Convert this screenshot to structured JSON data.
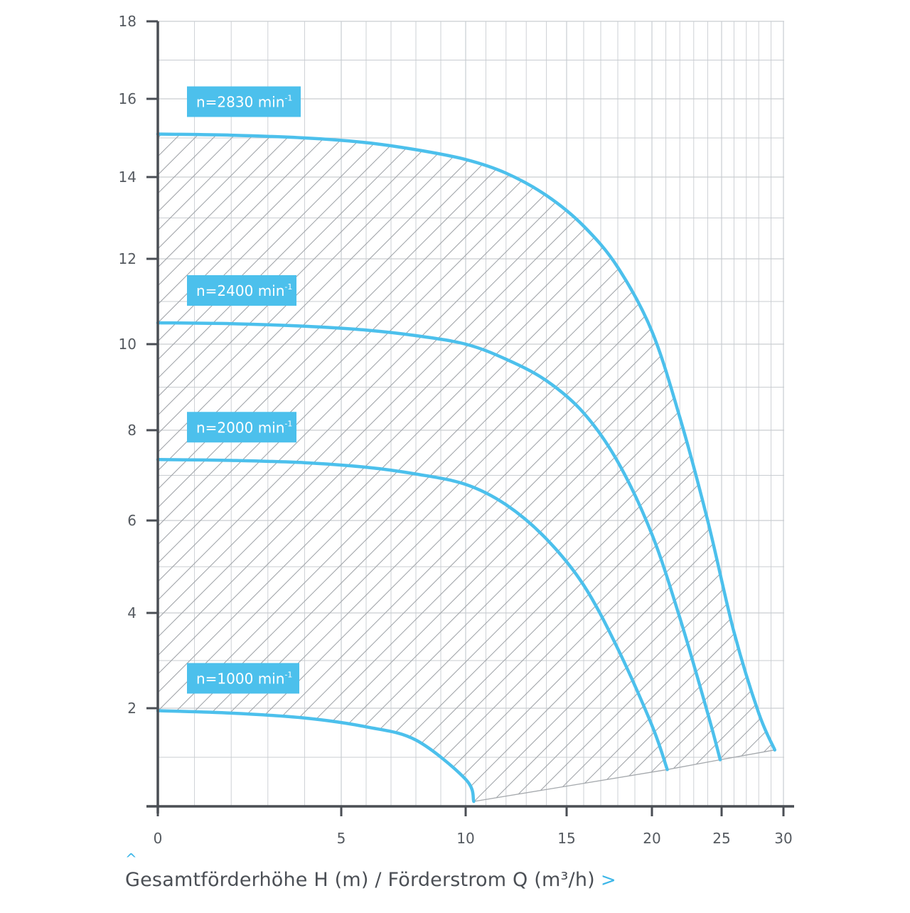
{
  "caption": {
    "text": "Gesamtförderhöhe H (m) / Förderstrom Q (m³/h)",
    "arrow": ">",
    "up": "^"
  },
  "colors": {
    "curve": "#4cc0ec",
    "label_bg": "#4cc0ec",
    "axis": "#4a4e54",
    "grid": "#c9cdd1",
    "hatch": "#9ea2a7"
  },
  "chart_data": {
    "type": "line",
    "x_scale": "pump-characteristic (non-linear)",
    "xlim": [
      0,
      30
    ],
    "ylim": [
      0,
      18
    ],
    "x_ticks": [
      0,
      5,
      10,
      15,
      20,
      25,
      30
    ],
    "x_tick_labels": [
      "0",
      "5",
      "10",
      "15",
      "20",
      "25",
      "30"
    ],
    "y_ticks": [
      2,
      4,
      6,
      8,
      10,
      12,
      14,
      16,
      18
    ],
    "y_tick_labels": [
      "2",
      "4",
      "6",
      "8",
      "10",
      "12",
      "14",
      "16",
      "18"
    ],
    "grid": true,
    "hatched_operating_area": true,
    "series": [
      {
        "name": "n=2830 min",
        "name_sup": "-1",
        "x": [
          0,
          2,
          4,
          6,
          8,
          10,
          12,
          14,
          16,
          18,
          20,
          22,
          24,
          26,
          28,
          29.3
        ],
        "y": [
          15.1,
          15.07,
          15.0,
          14.88,
          14.7,
          14.45,
          14.1,
          13.55,
          12.8,
          11.8,
          10.3,
          8.3,
          6.0,
          3.6,
          1.9,
          1.15
        ]
      },
      {
        "name": "n=2400 min",
        "name_sup": "-1",
        "x": [
          0,
          2,
          4,
          6,
          8,
          10,
          12,
          14,
          16,
          18,
          20,
          22,
          24,
          24.9
        ],
        "y": [
          10.5,
          10.48,
          10.42,
          10.33,
          10.2,
          10.0,
          9.65,
          9.15,
          8.4,
          7.3,
          5.7,
          3.9,
          1.9,
          0.95
        ]
      },
      {
        "name": "n=2000 min",
        "name_sup": "-1",
        "x": [
          0,
          2,
          4,
          6,
          8,
          10,
          12,
          14,
          16,
          18,
          20,
          21.1
        ],
        "y": [
          7.35,
          7.33,
          7.28,
          7.18,
          7.03,
          6.8,
          6.35,
          5.6,
          4.6,
          3.25,
          1.65,
          0.75
        ]
      },
      {
        "name": "n=1000 min",
        "name_sup": "-1",
        "x": [
          0,
          2,
          4,
          6,
          8,
          10,
          10.4
        ],
        "y": [
          1.95,
          1.9,
          1.8,
          1.62,
          1.35,
          0.55,
          0.1
        ]
      }
    ]
  }
}
